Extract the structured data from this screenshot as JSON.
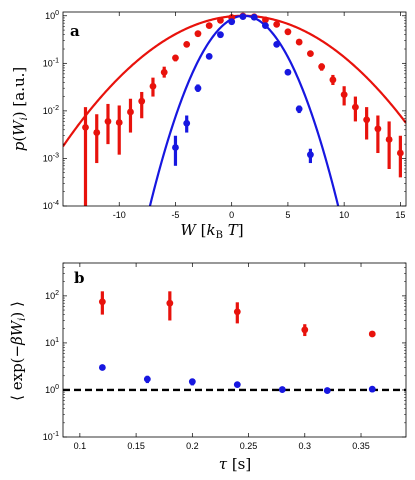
{
  "panel_labels": [
    "a",
    "b"
  ],
  "chart_data": [
    {
      "panel": "a",
      "type": "scatter",
      "xlabel": "W [k_B T]",
      "ylabel": "p(W_i) [a.u.]",
      "xlim": [
        -15,
        15.5
      ],
      "ylim": [
        0.0001,
        1.2
      ],
      "yscale": "log",
      "x_ticks": [
        -10,
        -5,
        0,
        5,
        10,
        15
      ],
      "y_ticks": [
        0.0001,
        0.001,
        0.01,
        0.1,
        1
      ],
      "y_tick_labels": [
        {
          "base": "10",
          "exp": "-4"
        },
        {
          "base": "10",
          "exp": "-3"
        },
        {
          "base": "10",
          "exp": "-2"
        },
        {
          "base": "10",
          "exp": "-1"
        },
        {
          "base": "10",
          "exp": "0"
        }
      ],
      "series": [
        {
          "color": "#e8120c",
          "points": [
            {
              "x": -13,
              "y": 0.0045,
              "lo": 0.0001,
              "hi": 0.012
            },
            {
              "x": -12,
              "y": 0.0035,
              "lo": 0.0008,
              "hi": 0.0085
            },
            {
              "x": -11,
              "y": 0.006,
              "lo": 0.002,
              "hi": 0.014
            },
            {
              "x": -10,
              "y": 0.0057,
              "lo": 0.0012,
              "hi": 0.013
            },
            {
              "x": -9,
              "y": 0.0095,
              "lo": 0.0035,
              "hi": 0.018
            },
            {
              "x": -8,
              "y": 0.016,
              "lo": 0.007,
              "hi": 0.025
            },
            {
              "x": -7,
              "y": 0.033,
              "lo": 0.02,
              "hi": 0.05
            },
            {
              "x": -6,
              "y": 0.065,
              "lo": 0.05,
              "hi": 0.085
            },
            {
              "x": -5,
              "y": 0.13,
              "lo": 0.11,
              "hi": 0.15
            },
            {
              "x": -4,
              "y": 0.25,
              "lo": 0.22,
              "hi": 0.28
            },
            {
              "x": -3,
              "y": 0.42,
              "lo": 0.38,
              "hi": 0.46
            },
            {
              "x": -2,
              "y": 0.62,
              "lo": 0.58,
              "hi": 0.66
            },
            {
              "x": -1,
              "y": 0.8,
              "lo": 0.76,
              "hi": 0.84
            },
            {
              "x": 0,
              "y": 0.92,
              "lo": 0.88,
              "hi": 0.96
            },
            {
              "x": 1,
              "y": 0.99,
              "lo": 0.96,
              "hi": 1.02
            },
            {
              "x": 2,
              "y": 0.95,
              "lo": 0.91,
              "hi": 0.99
            },
            {
              "x": 3,
              "y": 0.82,
              "lo": 0.78,
              "hi": 0.86
            },
            {
              "x": 4,
              "y": 0.66,
              "lo": 0.62,
              "hi": 0.7
            },
            {
              "x": 5,
              "y": 0.46,
              "lo": 0.42,
              "hi": 0.5
            },
            {
              "x": 6,
              "y": 0.28,
              "lo": 0.25,
              "hi": 0.31
            },
            {
              "x": 7,
              "y": 0.16,
              "lo": 0.14,
              "hi": 0.18
            },
            {
              "x": 8,
              "y": 0.085,
              "lo": 0.07,
              "hi": 0.1
            },
            {
              "x": 9,
              "y": 0.045,
              "lo": 0.035,
              "hi": 0.057
            },
            {
              "x": 10,
              "y": 0.022,
              "lo": 0.013,
              "hi": 0.033
            },
            {
              "x": 11,
              "y": 0.012,
              "lo": 0.006,
              "hi": 0.02
            },
            {
              "x": 12,
              "y": 0.0065,
              "lo": 0.0025,
              "hi": 0.012
            },
            {
              "x": 13,
              "y": 0.0042,
              "lo": 0.0013,
              "hi": 0.008
            },
            {
              "x": 14,
              "y": 0.0025,
              "lo": 0.0006,
              "hi": 0.006
            },
            {
              "x": 15,
              "y": 0.0013,
              "lo": 0.0004,
              "hi": 0.003
            }
          ],
          "fit": {
            "type": "gaussian",
            "mean": 1,
            "sigma": 4.5
          }
        },
        {
          "color": "#1717e0",
          "points": [
            {
              "x": -5,
              "y": 0.0017,
              "lo": 0.0007,
              "hi": 0.003
            },
            {
              "x": -4,
              "y": 0.0055,
              "lo": 0.0035,
              "hi": 0.008
            },
            {
              "x": -3,
              "y": 0.03,
              "lo": 0.025,
              "hi": 0.036
            },
            {
              "x": -2,
              "y": 0.14,
              "lo": 0.125,
              "hi": 0.155
            },
            {
              "x": -1,
              "y": 0.4,
              "lo": 0.37,
              "hi": 0.43
            },
            {
              "x": 0,
              "y": 0.75,
              "lo": 0.72,
              "hi": 0.78
            },
            {
              "x": 1,
              "y": 0.96,
              "lo": 0.93,
              "hi": 0.99
            },
            {
              "x": 2,
              "y": 0.93,
              "lo": 0.9,
              "hi": 0.96
            },
            {
              "x": 3,
              "y": 0.62,
              "lo": 0.59,
              "hi": 0.65
            },
            {
              "x": 4,
              "y": 0.25,
              "lo": 0.23,
              "hi": 0.27
            },
            {
              "x": 5,
              "y": 0.065,
              "lo": 0.058,
              "hi": 0.072
            },
            {
              "x": 6,
              "y": 0.011,
              "lo": 0.009,
              "hi": 0.013
            },
            {
              "x": 7,
              "y": 0.0012,
              "lo": 0.0008,
              "hi": 0.0016
            }
          ],
          "fit": {
            "type": "gaussian",
            "mean": 1.1,
            "sigma": 1.95
          }
        }
      ]
    },
    {
      "panel": "b",
      "type": "scatter",
      "xlabel": "τ [s]",
      "ylabel": "⟨ exp(−βW_i) ⟩",
      "xlim": [
        0.085,
        0.39
      ],
      "ylim": [
        0.1,
        500
      ],
      "yscale": "log",
      "x_ticks": [
        0.1,
        0.15,
        0.2,
        0.25,
        0.3,
        0.35
      ],
      "x_tick_labels": [
        "0.1",
        "0.15",
        "0.2",
        "0.25",
        "0.3",
        "0.35"
      ],
      "y_ticks": [
        0.1,
        1,
        10,
        100
      ],
      "y_tick_labels": [
        {
          "base": "10",
          "exp": "-1"
        },
        {
          "base": "10",
          "exp": "0"
        },
        {
          "base": "10",
          "exp": "1"
        },
        {
          "base": "10",
          "exp": "2"
        }
      ],
      "reference_line": {
        "y": 1,
        "style": "dashed",
        "color": "#000000"
      },
      "series": [
        {
          "color": "#e8120c",
          "points": [
            {
              "x": 0.12,
              "y": 75,
              "lo": 40,
              "hi": 125
            },
            {
              "x": 0.18,
              "y": 70,
              "lo": 30,
              "hi": 125
            },
            {
              "x": 0.24,
              "y": 46,
              "lo": 26,
              "hi": 73
            },
            {
              "x": 0.3,
              "y": 19,
              "lo": 14,
              "hi": 25
            },
            {
              "x": 0.36,
              "y": 15.5,
              "lo": 13.5,
              "hi": 17.5
            }
          ]
        },
        {
          "color": "#1717e0",
          "points": [
            {
              "x": 0.12,
              "y": 3,
              "lo": 2.8,
              "hi": 3.2
            },
            {
              "x": 0.16,
              "y": 1.7,
              "lo": 1.4,
              "hi": 2.0
            },
            {
              "x": 0.2,
              "y": 1.5,
              "lo": 1.25,
              "hi": 1.75
            },
            {
              "x": 0.24,
              "y": 1.3,
              "lo": 1.2,
              "hi": 1.4
            },
            {
              "x": 0.28,
              "y": 1.02,
              "lo": 0.97,
              "hi": 1.07
            },
            {
              "x": 0.32,
              "y": 0.97,
              "lo": 0.93,
              "hi": 1.01
            },
            {
              "x": 0.36,
              "y": 1.04,
              "lo": 0.99,
              "hi": 1.09
            }
          ]
        }
      ]
    }
  ]
}
